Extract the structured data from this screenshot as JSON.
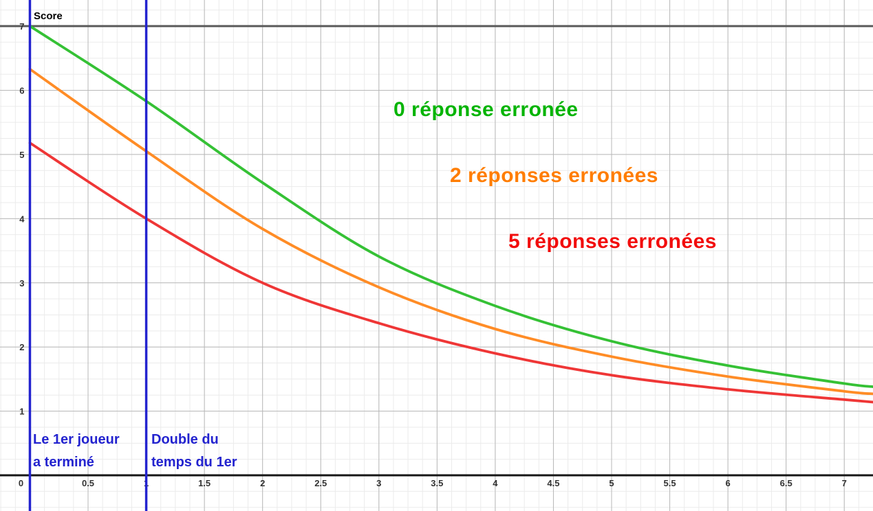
{
  "chart_data": {
    "type": "line",
    "title": "",
    "ylabel": "Score",
    "xlabel": "",
    "grid": true,
    "xlim": [
      -0.257,
      7.247
    ],
    "ylim": [
      -0.556,
      7.407
    ],
    "x_major_step": 0.5,
    "x_minor_step": 0.125,
    "y_major_step": 1,
    "y_minor_step": 0.25,
    "x_ticks": [
      {
        "v": 0,
        "label": "0"
      },
      {
        "v": 0.5,
        "label": "0.5"
      },
      {
        "v": 1,
        "label": "1"
      },
      {
        "v": 1.5,
        "label": "1.5"
      },
      {
        "v": 2,
        "label": "2"
      },
      {
        "v": 2.5,
        "label": "2.5"
      },
      {
        "v": 3,
        "label": "3"
      },
      {
        "v": 3.5,
        "label": "3.5"
      },
      {
        "v": 4,
        "label": "4"
      },
      {
        "v": 4.5,
        "label": "4.5"
      },
      {
        "v": 5,
        "label": "5"
      },
      {
        "v": 5.5,
        "label": "5.5"
      },
      {
        "v": 6,
        "label": "6"
      },
      {
        "v": 6.5,
        "label": "6.5"
      },
      {
        "v": 7,
        "label": "7"
      }
    ],
    "y_ticks": [
      {
        "v": 1,
        "label": "1"
      },
      {
        "v": 2,
        "label": "2"
      },
      {
        "v": 3,
        "label": "3"
      },
      {
        "v": 4,
        "label": "4"
      },
      {
        "v": 5,
        "label": "5"
      },
      {
        "v": 6,
        "label": "6"
      },
      {
        "v": 7,
        "label": "7"
      }
    ],
    "series": [
      {
        "name": "0 réponse erronée",
        "color": "#35c135",
        "label_color": "#04b404",
        "points": [
          [
            0,
            7.0
          ],
          [
            1,
            5.83
          ],
          [
            2,
            4.56
          ],
          [
            3,
            3.41
          ],
          [
            4,
            2.64
          ],
          [
            5,
            2.09
          ],
          [
            6,
            1.71
          ],
          [
            7,
            1.43
          ],
          [
            7.25,
            1.38
          ]
        ]
      },
      {
        "name": "2 réponses erronées",
        "color": "#ff8c26",
        "label_color": "#ff7d00",
        "points": [
          [
            0,
            6.33
          ],
          [
            1,
            5.05
          ],
          [
            2,
            3.84
          ],
          [
            3,
            2.93
          ],
          [
            4,
            2.28
          ],
          [
            5,
            1.85
          ],
          [
            6,
            1.54
          ],
          [
            7,
            1.31
          ],
          [
            7.25,
            1.27
          ]
        ]
      },
      {
        "name": "5 réponses erronées",
        "color": "#ef3636",
        "label_color": "#f20d0d",
        "points": [
          [
            0,
            5.18
          ],
          [
            1,
            4.0
          ],
          [
            2,
            3.0
          ],
          [
            3,
            2.37
          ],
          [
            4,
            1.9
          ],
          [
            5,
            1.56
          ],
          [
            6,
            1.34
          ],
          [
            7,
            1.18
          ],
          [
            7.25,
            1.14
          ]
        ]
      }
    ],
    "hlines": [
      {
        "y": 7,
        "color": "#595959",
        "width": 3
      }
    ],
    "vlines": [
      {
        "x": 0,
        "color": "#2323cf",
        "width": 3.5,
        "label_line1": "Le 1er joueur",
        "label_line2": "a terminé"
      },
      {
        "x": 1,
        "color": "#2323cf",
        "width": 3.5,
        "label_line1": "Double du",
        "label_line2": "temps du 1er"
      }
    ],
    "annotation_color": "#2323cf",
    "axis_color": "#161616",
    "axis_width": 3,
    "grid_major_color": "#b8b8b8",
    "grid_minor_color": "#ebebeb",
    "tick_label_color": "#333333",
    "curve_width": 3.8
  }
}
